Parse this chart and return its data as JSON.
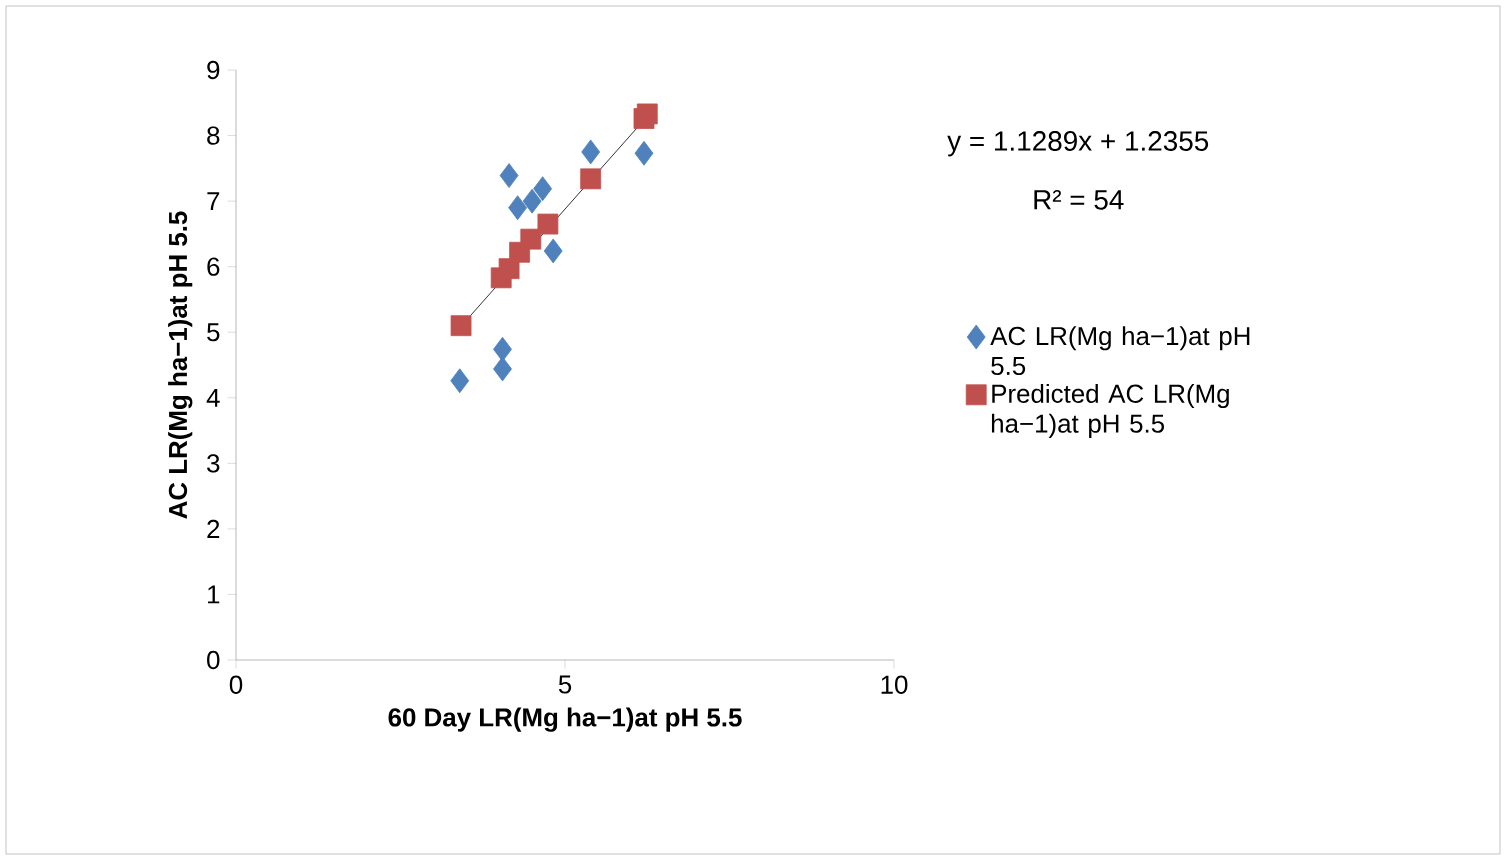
{
  "chart_data": {
    "type": "scatter",
    "xlabel": "60 Day LR(Mg ha−1)at pH 5.5",
    "ylabel": "AC LR(Mg ha−1)at pH 5.5",
    "series": [
      {
        "name": "AC LR(Mg ha−1)at pH 5.5",
        "color": "#4f81bd",
        "marker": "diamond",
        "x": [
          3.4,
          4.05,
          4.05,
          4.15,
          4.28,
          4.5,
          4.66,
          4.82,
          5.39,
          6.2
        ],
        "values": [
          4.26,
          4.74,
          4.44,
          7.39,
          6.9,
          7.0,
          7.19,
          6.24,
          7.75,
          7.73
        ]
      },
      {
        "name": "Predicted AC LR(Mg ha−1)at pH 5.5",
        "color": "#c0504d",
        "marker": "square",
        "x": [
          3.42,
          4.03,
          4.15,
          4.31,
          4.48,
          4.74,
          5.39,
          6.2,
          6.25
        ],
        "values": [
          5.1,
          5.83,
          5.97,
          6.22,
          6.42,
          6.65,
          7.34,
          8.26,
          8.33
        ]
      },
      {
        "type": "line",
        "color": "#000000",
        "marker": "none",
        "x": [
          3.41,
          6.23
        ],
        "values": [
          5.08,
          8.27
        ]
      }
    ],
    "xlim": [
      0,
      10
    ],
    "xticks": [
      0,
      5,
      10
    ],
    "ylim": [
      0,
      9
    ],
    "yticks": [
      0,
      1,
      2,
      3,
      4,
      5,
      6,
      7,
      8,
      9
    ],
    "grid": false,
    "legend": "right",
    "annotations": [
      "y = 1.1289x + 1.2355",
      "R² = 54"
    ]
  }
}
